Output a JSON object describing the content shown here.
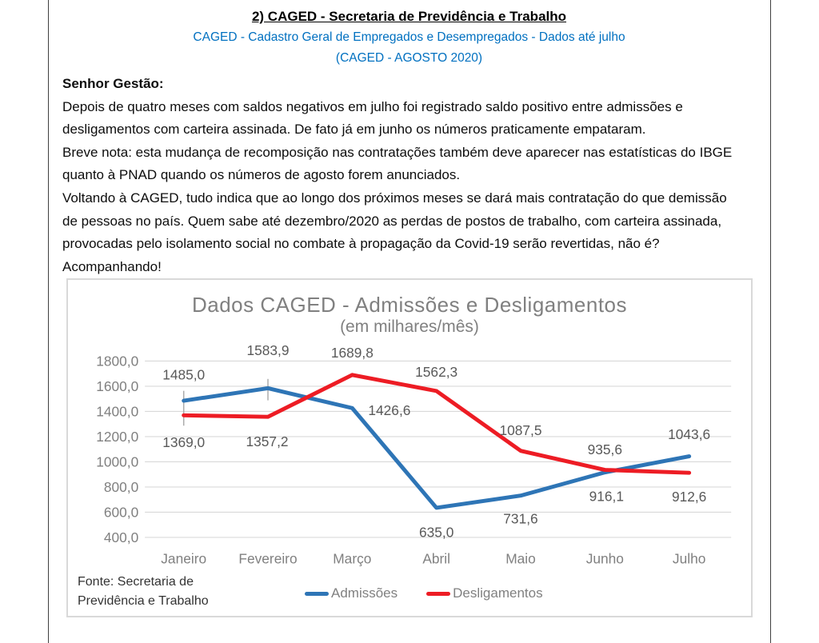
{
  "document": {
    "heading": "2) CAGED - Secretaria de Previdência e Trabalho",
    "subheading1": "CAGED - Cadastro Geral de Empregados e Desempregados - Dados até julho",
    "subheading2": "(CAGED - AGOSTO 2020)",
    "accent_color": "#0070C0",
    "greeting": "Senhor Gestão:",
    "paragraph_lines": [
      "Depois de quatro meses com saldos negativos em julho foi registrado saldo positivo entre admissões e",
      "desligamentos com carteira assinada. De fato já em junho os números praticamente empataram.",
      "Breve nota: esta mudança de recomposição nas contratações também deve aparecer nas estatísticas do IBGE",
      "quanto à PNAD quando os números de agosto forem anunciados.",
      "Voltando à CAGED, tudo indica que ao longo dos próximos meses se dará mais contratação do que demissão",
      "de pessoas no país. Quem sabe até dezembro/2020 as perdas de postos de trabalho, com carteira assinada,",
      "provocadas pelo isolamento social no combate à propagação da Covid-19 serão revertidas, não é?",
      "Acompanhando!"
    ]
  },
  "chart_footer": {
    "source_line1": "Fonte: Secretaria de",
    "source_line2": "Previdência e Trabalho"
  },
  "chart_data": {
    "type": "line",
    "title": "Dados CAGED - Admissões e Desligamentos",
    "subtitle": "(em milhares/mês)",
    "categories": [
      "Janeiro",
      "Fevereiro",
      "Março",
      "Abril",
      "Maio",
      "Junho",
      "Julho"
    ],
    "series": [
      {
        "name": "Admissões",
        "color": "#2E75B6",
        "values": [
          1485.0,
          1583.9,
          1426.6,
          635.0,
          731.6,
          916.1,
          1043.6
        ]
      },
      {
        "name": "Desligamentos",
        "color": "#ED1C24",
        "values": [
          1369.0,
          1357.2,
          1689.8,
          1562.3,
          1087.5,
          935.6,
          912.6
        ]
      }
    ],
    "ylim": [
      400,
      1800
    ],
    "ytick_step": 200,
    "number_format": "decimal-comma",
    "grid": true,
    "gridline_color": "#d9d9d9",
    "axis_label_color": "#808080",
    "data_label_color": "#595959",
    "data_labels": true,
    "legend_position": "bottom-center",
    "source": "Fonte: Secretaria de Previdência e Trabalho"
  }
}
